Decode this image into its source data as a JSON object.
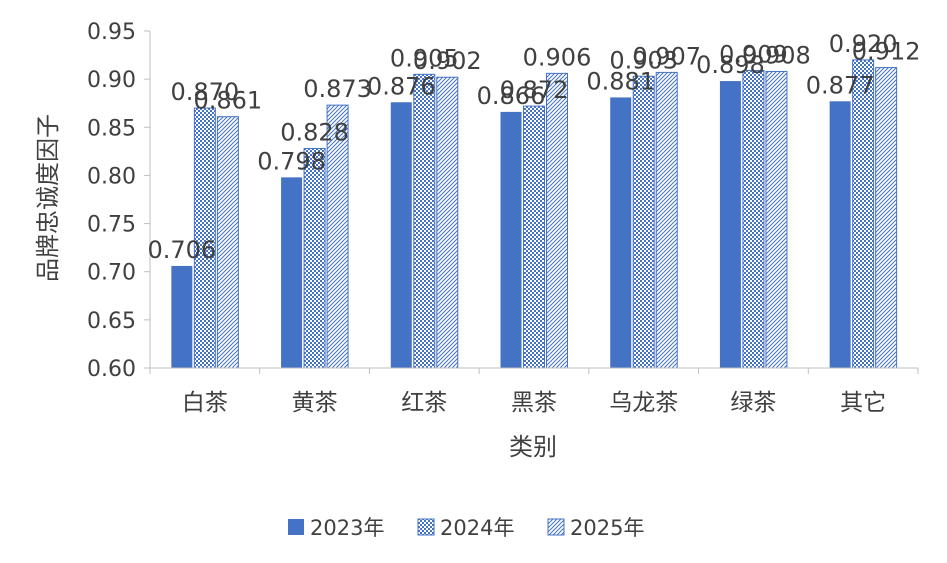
{
  "chart_data": {
    "type": "bar",
    "title": "",
    "xlabel": "类别",
    "ylabel": "品牌忠诚度因子",
    "ylim": [
      0.6,
      0.95
    ],
    "yticks": [
      "0.60",
      "0.65",
      "0.70",
      "0.75",
      "0.80",
      "0.85",
      "0.90",
      "0.95"
    ],
    "grid": false,
    "legend_position": "bottom",
    "categories": [
      "白茶",
      "黄茶",
      "红茶",
      "黑茶",
      "乌龙茶",
      "绿茶",
      "其它"
    ],
    "series": [
      {
        "name": "2023年",
        "values": [
          0.706,
          0.798,
          0.876,
          0.866,
          0.881,
          0.898,
          0.877
        ],
        "labels": [
          "0.706",
          "0.798",
          "0.876",
          "0.866",
          "0.881",
          "0.898",
          "0.877"
        ],
        "color": "#4472C4",
        "pattern": "solid"
      },
      {
        "name": "2024年",
        "values": [
          0.87,
          0.828,
          0.905,
          0.872,
          0.903,
          0.909,
          0.92
        ],
        "labels": [
          "0.870",
          "0.828",
          "0.905",
          "0.872",
          "0.903",
          "0.909",
          "0.920"
        ],
        "color": "#4472C4",
        "pattern": "checker"
      },
      {
        "name": "2025年",
        "values": [
          0.861,
          0.873,
          0.902,
          0.906,
          0.907,
          0.908,
          0.912
        ],
        "labels": [
          "0.861",
          "0.873",
          "0.902",
          "0.906",
          "0.907",
          "0.908",
          "0.912"
        ],
        "color": "#4472C4",
        "pattern": "diagonal"
      }
    ]
  }
}
